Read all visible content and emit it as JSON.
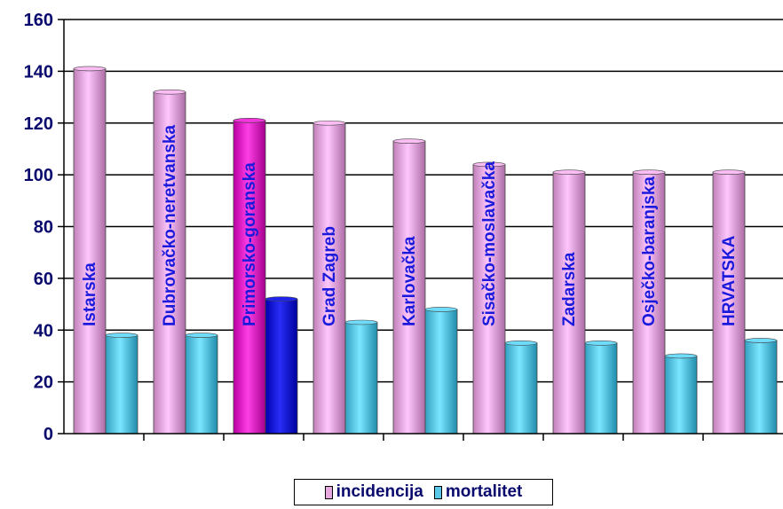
{
  "chart_data": {
    "type": "bar",
    "categories": [
      "Istarska",
      "Dubrovačko-neretvanska",
      "Primorsko-goranska",
      "Grad Zagreb",
      "Karlovačka",
      "Sisačko-moslavačka",
      "Zadarska",
      "Osječko-baranjska",
      "HRVATSKA"
    ],
    "series": [
      {
        "name": "incidencija",
        "values": [
          141,
          132,
          121,
          120,
          113,
          104,
          101,
          101,
          101
        ],
        "color": "#e8a8e0"
      },
      {
        "name": "mortalitet",
        "values": [
          38,
          38,
          52,
          43,
          48,
          35,
          35,
          30,
          36
        ],
        "color": "#5cc8e8"
      }
    ],
    "highlight": {
      "category_index": 2,
      "colors": [
        "#e020c8",
        "#0a10d8"
      ]
    },
    "ylim": [
      0,
      160
    ],
    "yticks": [
      0,
      20,
      40,
      60,
      80,
      100,
      120,
      140,
      160
    ],
    "grid": true,
    "legend_position": "bottom",
    "title": "",
    "xlabel": "",
    "ylabel": ""
  }
}
